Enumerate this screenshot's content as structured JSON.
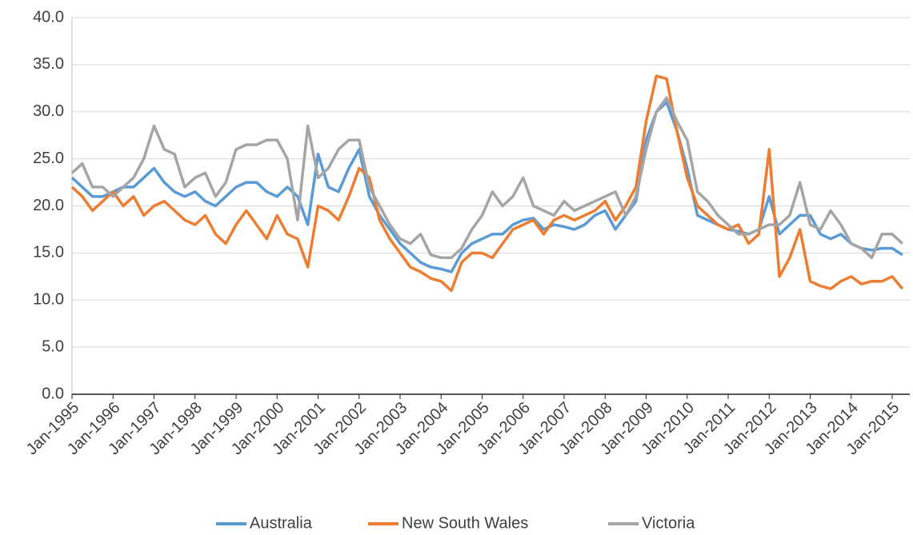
{
  "chart_data": {
    "type": "line",
    "categories": [
      "Jan-1995",
      null,
      null,
      null,
      "Jan-1996",
      null,
      null,
      null,
      "Jan-1997",
      null,
      null,
      null,
      "Jan-1998",
      null,
      null,
      null,
      "Jan-1999",
      null,
      null,
      null,
      "Jan-2000",
      null,
      null,
      null,
      "Jan-2001",
      null,
      null,
      null,
      "Jan-2002",
      null,
      null,
      null,
      "Jan-2003",
      null,
      null,
      null,
      "Jan-2004",
      null,
      null,
      null,
      "Jan-2005",
      null,
      null,
      null,
      "Jan-2006",
      null,
      null,
      null,
      "Jan-2007",
      null,
      null,
      null,
      "Jan-2008",
      null,
      null,
      null,
      "Jan-2009",
      null,
      null,
      null,
      "Jan-2010",
      null,
      null,
      null,
      "Jan-2011",
      null,
      null,
      null,
      "Jan-2012",
      null,
      null,
      null,
      "Jan-2013",
      null,
      null,
      null,
      "Jan-2014",
      null,
      null,
      null,
      "Jan-2015",
      null
    ],
    "series": [
      {
        "name": "Australia",
        "color": "#5b9bd5",
        "values": [
          23,
          22,
          21,
          21,
          21.5,
          22,
          22,
          23,
          24,
          22.5,
          21.5,
          21,
          21.5,
          20.5,
          20,
          21,
          22,
          22.5,
          22.5,
          21.5,
          21,
          22,
          21,
          18,
          25.5,
          22,
          21.5,
          24,
          26,
          21,
          19,
          17.5,
          16,
          15,
          14,
          13.5,
          13.3,
          13,
          15,
          16,
          16.5,
          17,
          17,
          18,
          18.5,
          18.7,
          17.5,
          18,
          17.8,
          17.5,
          18,
          19,
          19.5,
          17.5,
          19,
          20.5,
          27,
          30,
          31,
          28,
          24,
          19,
          18.5,
          18,
          17.5,
          17.3,
          17,
          17.5,
          21,
          17,
          18,
          19,
          19,
          17,
          16.5,
          17,
          16,
          15.5,
          15.3,
          15.5,
          15.5,
          14.8
        ]
      },
      {
        "name": "New South Wales",
        "color": "#ed7d31",
        "values": [
          22,
          21,
          19.5,
          20.5,
          21.5,
          20,
          21,
          19,
          20,
          20.5,
          19.5,
          18.5,
          18,
          19,
          17,
          16,
          18,
          19.5,
          18,
          16.5,
          19,
          17,
          16.5,
          13.5,
          20,
          19.5,
          18.5,
          21,
          24,
          23,
          18.5,
          16.5,
          15,
          13.5,
          13,
          12.3,
          12,
          11,
          14,
          15,
          15,
          14.5,
          16,
          17.5,
          18,
          18.5,
          17,
          18.5,
          19,
          18.5,
          19,
          19.5,
          20.5,
          18.5,
          20,
          22,
          29,
          33.8,
          33.5,
          28,
          23,
          20,
          19,
          18,
          17.5,
          18,
          16,
          17,
          26,
          12.5,
          14.5,
          17.5,
          12,
          11.5,
          11.2,
          12,
          12.5,
          11.7,
          12,
          12,
          12.5,
          11.2
        ]
      },
      {
        "name": "Victoria",
        "color": "#a5a5a5",
        "values": [
          23.5,
          24.5,
          22,
          22,
          21,
          22,
          23,
          25,
          28.5,
          26,
          25.5,
          22,
          23,
          23.5,
          21,
          22.5,
          26,
          26.5,
          26.5,
          27,
          27,
          25,
          18.5,
          28.5,
          23,
          24,
          26,
          27,
          27,
          22,
          20,
          18,
          16.5,
          16,
          17,
          14.8,
          14.5,
          14.5,
          15.5,
          17.5,
          19,
          21.5,
          20,
          21,
          23,
          20,
          19.5,
          19,
          20.5,
          19.5,
          20,
          20.5,
          21,
          21.5,
          19,
          21,
          26,
          30,
          31.5,
          29,
          27,
          21.5,
          20.5,
          19,
          18,
          17,
          17,
          17.5,
          18,
          18,
          19,
          22.5,
          18,
          17.5,
          19.5,
          18,
          16,
          15.5,
          14.5,
          17,
          17,
          16
        ]
      }
    ],
    "ylim": [
      0,
      40
    ],
    "yticks": [
      {
        "value": 0,
        "label": "0.0"
      },
      {
        "value": 5,
        "label": "5.0"
      },
      {
        "value": 10,
        "label": "10.0"
      },
      {
        "value": 15,
        "label": "15.0"
      },
      {
        "value": 20,
        "label": "20.0"
      },
      {
        "value": 25,
        "label": "25.0"
      },
      {
        "value": 30,
        "label": "30.0"
      },
      {
        "value": 35,
        "label": "35.0"
      },
      {
        "value": 40,
        "label": "40.0"
      }
    ],
    "grid": true,
    "legend": "bottom"
  }
}
